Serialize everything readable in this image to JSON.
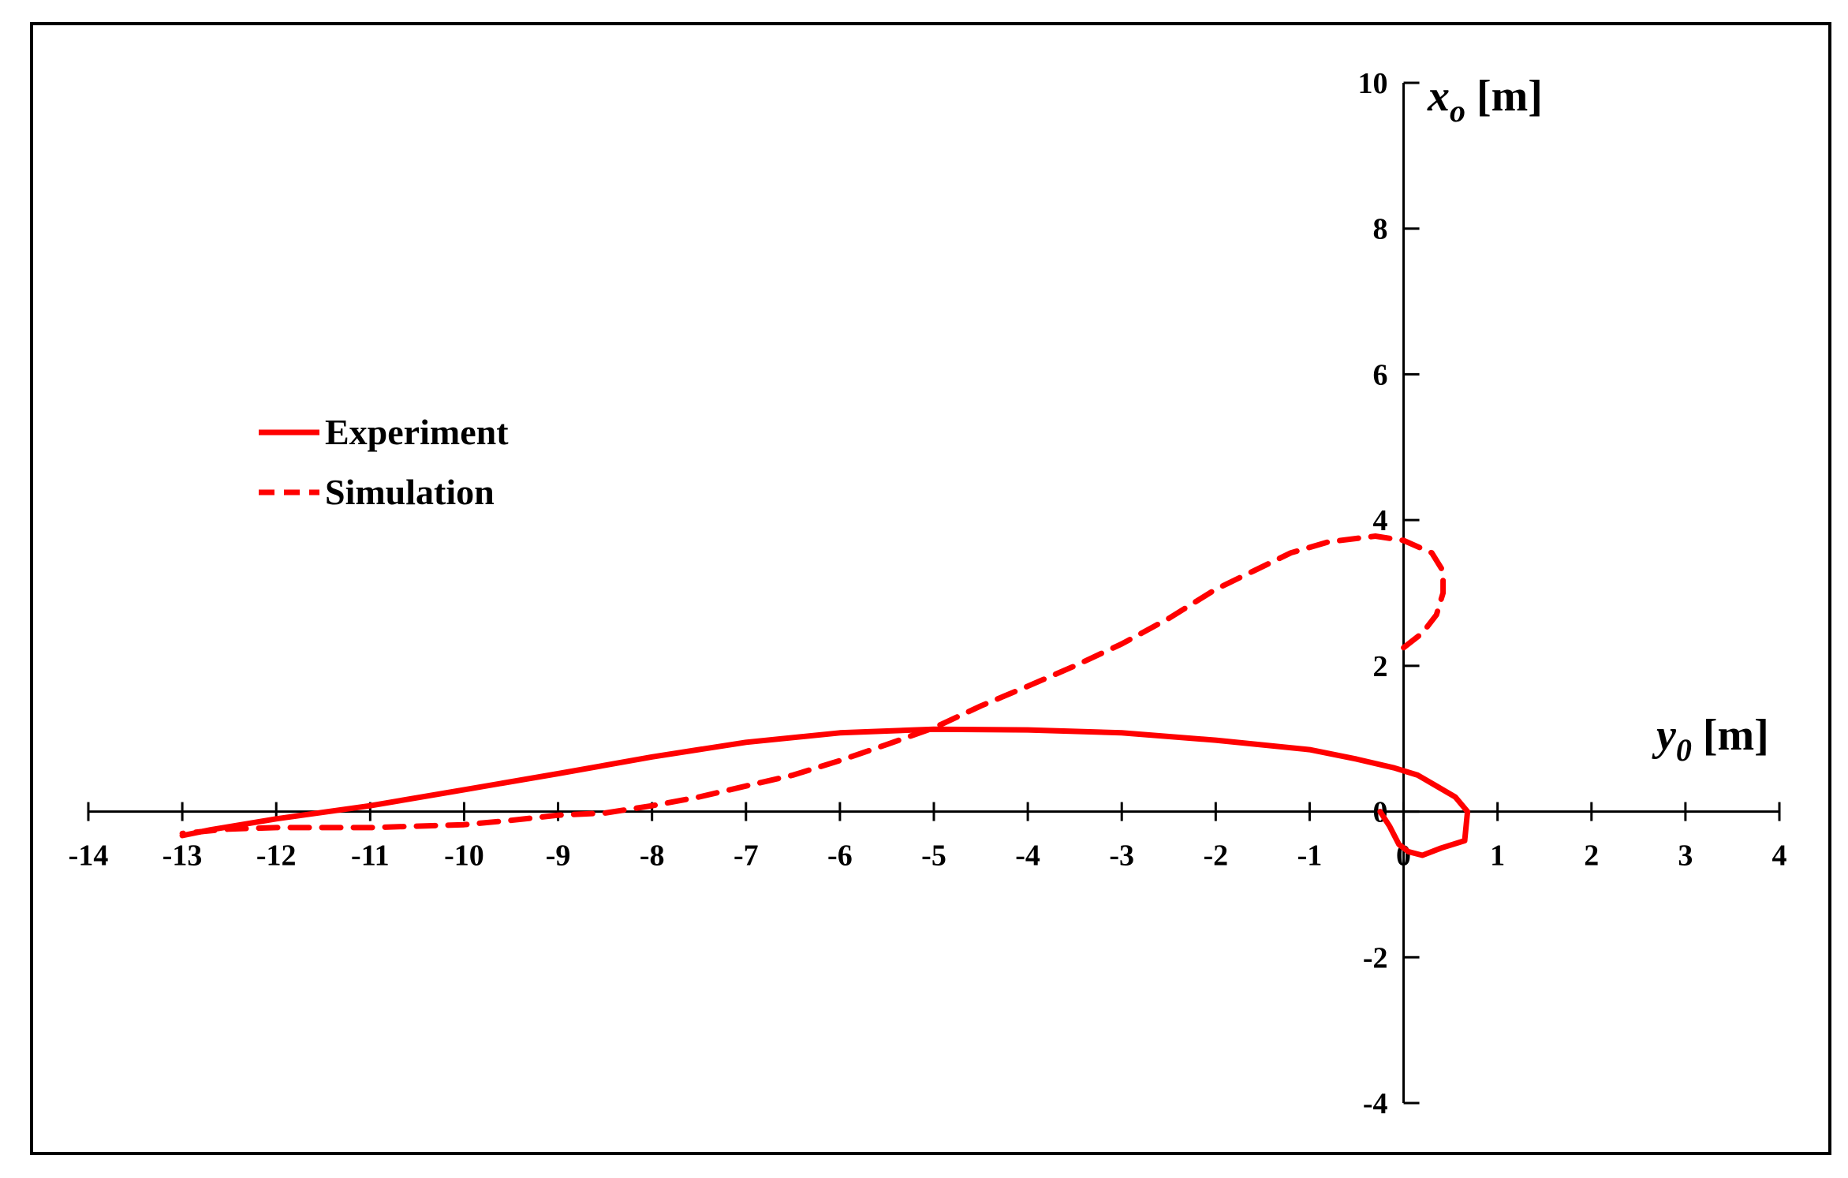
{
  "chart_data": {
    "type": "line",
    "xlabel": {
      "var": "y",
      "sub": "0",
      "unit": "[m]"
    },
    "ylabel": {
      "var": "x",
      "sub": "o",
      "unit": "[m]"
    },
    "xlim": [
      -14,
      4
    ],
    "ylim": [
      -4,
      10
    ],
    "x_ticks": [
      "-14",
      "-13",
      "-12",
      "-11",
      "-10",
      "-9",
      "-8",
      "-7",
      "-6",
      "-5",
      "-4",
      "-3",
      "-2",
      "-1",
      "0",
      "1",
      "2",
      "3",
      "4"
    ],
    "y_ticks": [
      "-4",
      "-2",
      "0",
      "2",
      "4",
      "6",
      "8",
      "10"
    ],
    "grid": false,
    "legend_position": "left",
    "series": [
      {
        "name": "Experiment",
        "style": "solid",
        "color": "#ff0000",
        "points": [
          [
            -0.25,
            0.0
          ],
          [
            -0.15,
            -0.2
          ],
          [
            -0.05,
            -0.45
          ],
          [
            0.05,
            -0.55
          ],
          [
            0.2,
            -0.6
          ],
          [
            0.4,
            -0.5
          ],
          [
            0.65,
            -0.4
          ],
          [
            0.68,
            0.0
          ],
          [
            0.55,
            0.2
          ],
          [
            0.35,
            0.35
          ],
          [
            0.15,
            0.5
          ],
          [
            -0.1,
            0.6
          ],
          [
            -0.5,
            0.72
          ],
          [
            -1.0,
            0.85
          ],
          [
            -2.0,
            0.98
          ],
          [
            -3.0,
            1.08
          ],
          [
            -4.0,
            1.12
          ],
          [
            -5.0,
            1.13
          ],
          [
            -6.0,
            1.08
          ],
          [
            -7.0,
            0.95
          ],
          [
            -8.0,
            0.75
          ],
          [
            -9.0,
            0.52
          ],
          [
            -10.0,
            0.3
          ],
          [
            -11.0,
            0.08
          ],
          [
            -12.0,
            -0.1
          ],
          [
            -12.7,
            -0.25
          ],
          [
            -13.0,
            -0.33
          ]
        ]
      },
      {
        "name": "Simulation",
        "style": "dashed",
        "color": "#ff0000",
        "points": [
          [
            0.0,
            2.25
          ],
          [
            0.2,
            2.45
          ],
          [
            0.35,
            2.7
          ],
          [
            0.42,
            3.0
          ],
          [
            0.42,
            3.3
          ],
          [
            0.3,
            3.55
          ],
          [
            0.0,
            3.72
          ],
          [
            -0.3,
            3.78
          ],
          [
            -0.8,
            3.7
          ],
          [
            -1.2,
            3.55
          ],
          [
            -1.6,
            3.3
          ],
          [
            -2.0,
            3.05
          ],
          [
            -2.5,
            2.65
          ],
          [
            -3.0,
            2.3
          ],
          [
            -3.5,
            2.0
          ],
          [
            -4.0,
            1.72
          ],
          [
            -4.5,
            1.45
          ],
          [
            -5.0,
            1.15
          ],
          [
            -5.5,
            0.92
          ],
          [
            -6.0,
            0.7
          ],
          [
            -6.5,
            0.5
          ],
          [
            -7.0,
            0.35
          ],
          [
            -7.5,
            0.2
          ],
          [
            -8.0,
            0.08
          ],
          [
            -8.5,
            -0.02
          ],
          [
            -9.0,
            -0.05
          ],
          [
            -9.5,
            -0.12
          ],
          [
            -10.0,
            -0.18
          ],
          [
            -11.0,
            -0.22
          ],
          [
            -12.0,
            -0.22
          ],
          [
            -12.5,
            -0.24
          ],
          [
            -13.0,
            -0.3
          ]
        ]
      }
    ]
  }
}
